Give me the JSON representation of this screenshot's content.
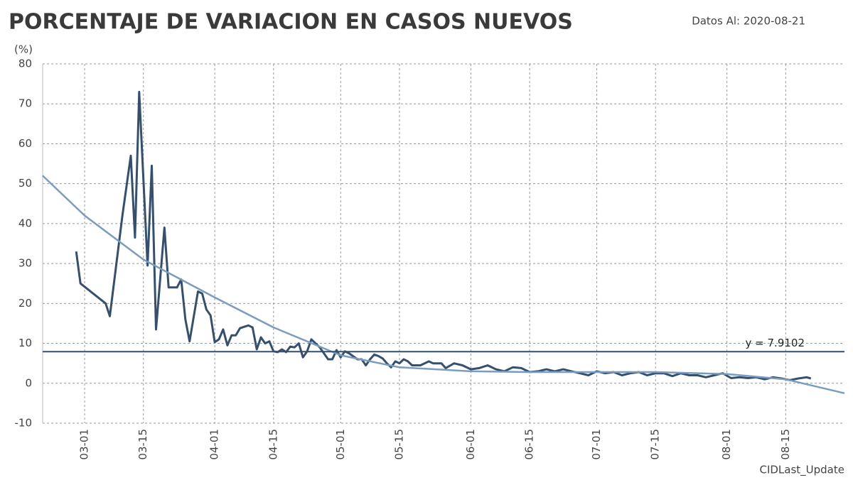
{
  "chart_data": {
    "type": "line",
    "title": "PORCENTAJE DE VARIACION EN CASOS NUEVOS",
    "subtitle": "Datos Al: 2020-08-21",
    "y_label": "(%)",
    "x_label": "CIDLast_Update",
    "xlim": [
      "02-20",
      "08-29"
    ],
    "xticks": [
      "03-01",
      "03-15",
      "04-01",
      "04-15",
      "05-01",
      "05-15",
      "06-01",
      "06-15",
      "07-01",
      "07-15",
      "08-01",
      "08-15"
    ],
    "ylim": [
      -10,
      80
    ],
    "yticks": [
      -10,
      0,
      10,
      20,
      30,
      40,
      50,
      60,
      70,
      80
    ],
    "grid": true,
    "hline": {
      "value": 7.9102,
      "label": "y = 7.9102",
      "color": "#34506e"
    },
    "series": [
      {
        "color": "#34506e",
        "x": [
          "02-28",
          "02-29",
          "03-06",
          "03-07",
          "03-10",
          "03-12",
          "03-13",
          "03-14",
          "03-16",
          "03-17",
          "03-18",
          "03-20",
          "03-21",
          "03-23",
          "03-24",
          "03-25",
          "03-26",
          "03-28",
          "03-29",
          "03-30",
          "03-31",
          "04-01",
          "04-02",
          "04-03",
          "04-04",
          "04-05",
          "04-06",
          "04-07",
          "04-09",
          "04-10",
          "04-11",
          "04-12",
          "04-13",
          "04-14",
          "04-15",
          "04-16",
          "04-17",
          "04-18",
          "04-19",
          "04-20",
          "04-21",
          "04-22",
          "04-23",
          "04-24",
          "04-25",
          "04-26",
          "04-28",
          "04-29",
          "04-30",
          "05-01",
          "05-02",
          "05-03",
          "05-05",
          "05-06",
          "05-07",
          "05-08",
          "05-09",
          "05-10",
          "05-11",
          "05-12",
          "05-13",
          "05-14",
          "05-15",
          "05-16",
          "05-17",
          "05-18",
          "05-20",
          "05-22",
          "05-23",
          "05-25",
          "05-26",
          "05-28",
          "05-30",
          "06-01",
          "06-03",
          "06-05",
          "06-07",
          "06-09",
          "06-11",
          "06-13",
          "06-15",
          "06-17",
          "06-19",
          "06-21",
          "06-23",
          "06-25",
          "06-27",
          "06-29",
          "07-01",
          "07-03",
          "07-05",
          "07-07",
          "07-09",
          "07-11",
          "07-13",
          "07-15",
          "07-17",
          "07-19",
          "07-21",
          "07-23",
          "07-25",
          "07-27",
          "07-29",
          "07-31",
          "08-02",
          "08-04",
          "08-06",
          "08-08",
          "08-10",
          "08-12",
          "08-14",
          "08-16",
          "08-18",
          "08-20",
          "08-21"
        ],
        "values": [
          33,
          25,
          20,
          16.8,
          42,
          57,
          36.5,
          73,
          29.5,
          54.5,
          13.5,
          39,
          24,
          24,
          26,
          16,
          10.5,
          23,
          22.5,
          18.5,
          17,
          10.3,
          11,
          13.5,
          9.5,
          12,
          12,
          13.8,
          14.5,
          14,
          8.5,
          11.5,
          10,
          10.5,
          8,
          7.8,
          8.5,
          7.8,
          9.2,
          9,
          10,
          6.5,
          8,
          11,
          10,
          9,
          6,
          6,
          8.3,
          6.5,
          8,
          7.5,
          6,
          6,
          4.5,
          6,
          7.2,
          6.8,
          6.2,
          5,
          4,
          5.5,
          5,
          6,
          5.5,
          4.5,
          4.5,
          5.5,
          5,
          5,
          3.8,
          5,
          4.5,
          3.5,
          3.8,
          4.5,
          3.5,
          3,
          4,
          3.8,
          2.8,
          3,
          3.5,
          3,
          3.5,
          3,
          2.5,
          2,
          3,
          2.5,
          2.8,
          2,
          2.5,
          2.8,
          2,
          2.5,
          2.5,
          1.8,
          2.5,
          2,
          2,
          1.5,
          2,
          2.5,
          1.3,
          1.5,
          1.3,
          1.5,
          1,
          1.5,
          1.2,
          0.8,
          1.2,
          1.5,
          1.2
        ]
      },
      {
        "color": "#7a9cc0",
        "x": [
          "02-20",
          "03-01",
          "03-15",
          "04-01",
          "04-15",
          "05-01",
          "05-15",
          "06-01",
          "06-15",
          "07-01",
          "07-15",
          "08-01",
          "08-15",
          "08-29"
        ],
        "values": [
          52,
          42,
          31,
          21.5,
          14,
          7,
          4,
          3,
          2.8,
          2.8,
          2.8,
          2.3,
          1,
          -2.5
        ]
      }
    ]
  }
}
